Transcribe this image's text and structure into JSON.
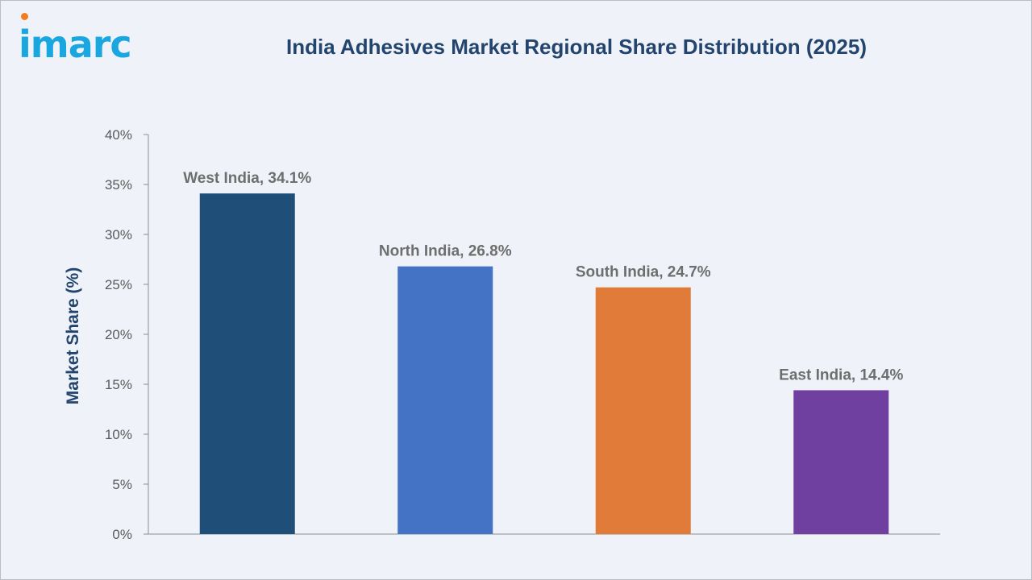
{
  "brand": {
    "logo_text": "imarc",
    "logo_color": "#1aa7e0",
    "logo_dot_color": "#f37c20"
  },
  "chart_data": {
    "type": "bar",
    "title": "India Adhesives Market Regional Share Distribution (2025)",
    "xlabel": "",
    "ylabel": "Market Share (%)",
    "categories": [
      "West India",
      "North India",
      "South India",
      "East India"
    ],
    "values": [
      34.1,
      26.8,
      24.7,
      14.4
    ],
    "data_labels": [
      "West India, 34.1%",
      "North India, 26.8%",
      "South India, 24.7%",
      "East India, 14.4%"
    ],
    "colors": [
      "#1f4e79",
      "#4472c4",
      "#e07b39",
      "#7040a0"
    ],
    "ylim": [
      0,
      40
    ],
    "yticks": [
      0,
      5,
      10,
      15,
      20,
      25,
      30,
      35,
      40
    ],
    "ytick_labels": [
      "0%",
      "5%",
      "10%",
      "15%",
      "20%",
      "25%",
      "30%",
      "35%",
      "40%"
    ],
    "grid": false,
    "legend": "none"
  }
}
